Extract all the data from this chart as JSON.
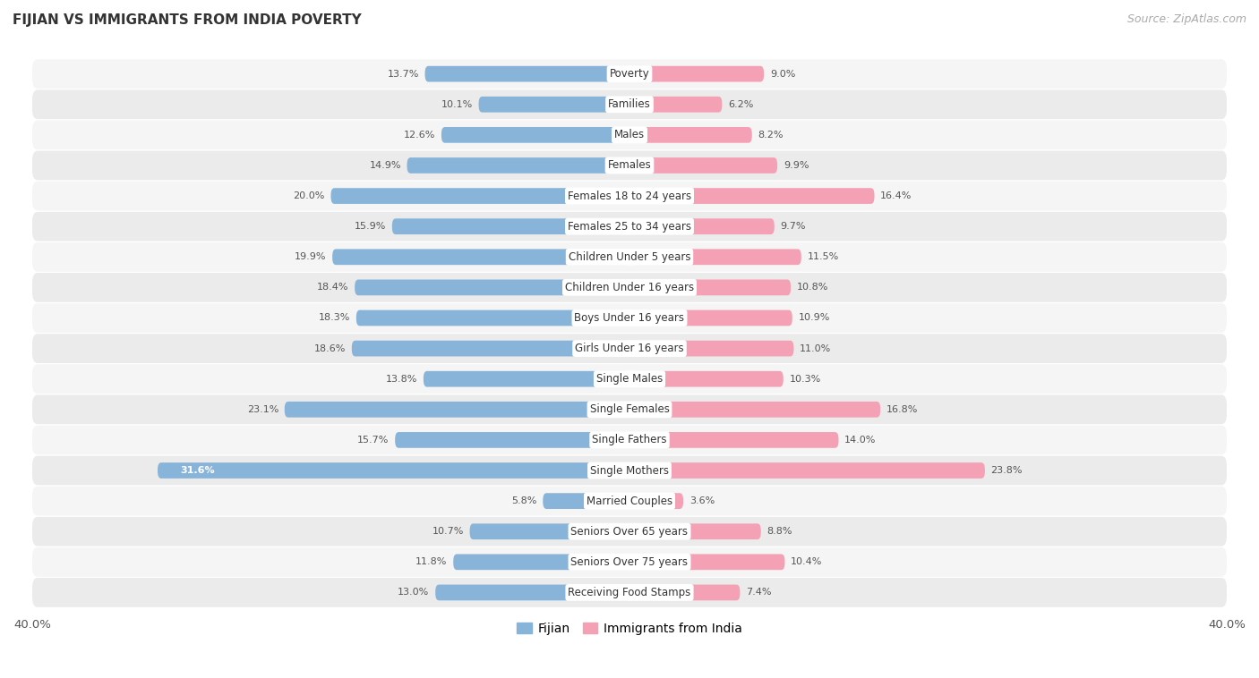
{
  "title": "FIJIAN VS IMMIGRANTS FROM INDIA POVERTY",
  "source": "Source: ZipAtlas.com",
  "categories": [
    "Poverty",
    "Families",
    "Males",
    "Females",
    "Females 18 to 24 years",
    "Females 25 to 34 years",
    "Children Under 5 years",
    "Children Under 16 years",
    "Boys Under 16 years",
    "Girls Under 16 years",
    "Single Males",
    "Single Females",
    "Single Fathers",
    "Single Mothers",
    "Married Couples",
    "Seniors Over 65 years",
    "Seniors Over 75 years",
    "Receiving Food Stamps"
  ],
  "fijian": [
    13.7,
    10.1,
    12.6,
    14.9,
    20.0,
    15.9,
    19.9,
    18.4,
    18.3,
    18.6,
    13.8,
    23.1,
    15.7,
    31.6,
    5.8,
    10.7,
    11.8,
    13.0
  ],
  "india": [
    9.0,
    6.2,
    8.2,
    9.9,
    16.4,
    9.7,
    11.5,
    10.8,
    10.9,
    11.0,
    10.3,
    16.8,
    14.0,
    23.8,
    3.6,
    8.8,
    10.4,
    7.4
  ],
  "fijian_color": "#89b4d9",
  "india_color": "#f4a0b5",
  "bar_height": 0.52,
  "xlim": 40.0,
  "row_bg_even": "#f5f5f5",
  "row_bg_odd": "#ebebeb",
  "legend_fijian": "Fijian",
  "legend_india": "Immigrants from India",
  "label_font_size": 8.5,
  "value_font_size": 8.0,
  "title_fontsize": 11,
  "source_fontsize": 9
}
